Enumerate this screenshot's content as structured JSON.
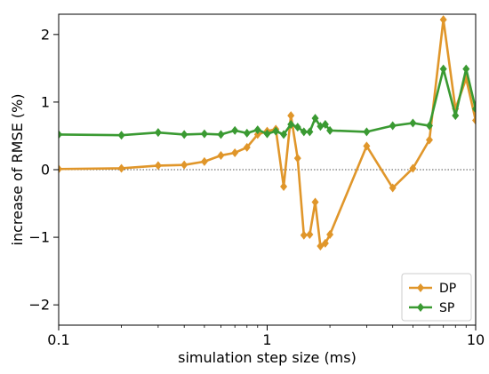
{
  "chart_data": {
    "type": "line",
    "xlabel": "simulation step size (ms)",
    "ylabel": "increase of RMSE (%)",
    "xscale": "log",
    "xlim": [
      0.1,
      10
    ],
    "ylim": [
      -2.3,
      2.3
    ],
    "xticks": [
      {
        "value": 0.1,
        "label": "0.1"
      },
      {
        "value": 1,
        "label": "1"
      },
      {
        "value": 10,
        "label": "10"
      }
    ],
    "yticks": [
      {
        "value": -2,
        "label": "−2"
      },
      {
        "value": -1,
        "label": "−1"
      },
      {
        "value": 0,
        "label": "0"
      },
      {
        "value": 1,
        "label": "1"
      },
      {
        "value": 2,
        "label": "2"
      }
    ],
    "reference_line": {
      "y": 0,
      "style": "dotted"
    },
    "legend_position": "bottom-right",
    "series": [
      {
        "name": "DP",
        "color": "#e0962a",
        "x": [
          0.1,
          0.2,
          0.3,
          0.4,
          0.5,
          0.6,
          0.7,
          0.8,
          0.9,
          1.0,
          1.1,
          1.2,
          1.3,
          1.4,
          1.5,
          1.6,
          1.7,
          1.8,
          1.9,
          2.0,
          3.0,
          4.0,
          5.0,
          6.0,
          7.0,
          8.0,
          9.0,
          10.0
        ],
        "y": [
          0.01,
          0.02,
          0.06,
          0.07,
          0.12,
          0.21,
          0.25,
          0.33,
          0.52,
          0.57,
          0.6,
          -0.25,
          0.8,
          0.17,
          -0.97,
          -0.96,
          -0.48,
          -1.13,
          -1.09,
          -0.96,
          0.35,
          -0.27,
          0.02,
          0.44,
          2.22,
          0.9,
          1.35,
          0.73
        ]
      },
      {
        "name": "SP",
        "color": "#3a9a32",
        "x": [
          0.1,
          0.2,
          0.3,
          0.4,
          0.5,
          0.6,
          0.7,
          0.8,
          0.9,
          1.0,
          1.1,
          1.2,
          1.3,
          1.4,
          1.5,
          1.6,
          1.7,
          1.8,
          1.9,
          2.0,
          3.0,
          4.0,
          5.0,
          6.0,
          7.0,
          8.0,
          9.0,
          10.0
        ],
        "y": [
          0.52,
          0.51,
          0.55,
          0.52,
          0.53,
          0.52,
          0.58,
          0.54,
          0.59,
          0.53,
          0.57,
          0.52,
          0.67,
          0.63,
          0.56,
          0.56,
          0.76,
          0.64,
          0.67,
          0.58,
          0.56,
          0.65,
          0.69,
          0.65,
          1.49,
          0.8,
          1.49,
          0.9
        ]
      }
    ]
  }
}
